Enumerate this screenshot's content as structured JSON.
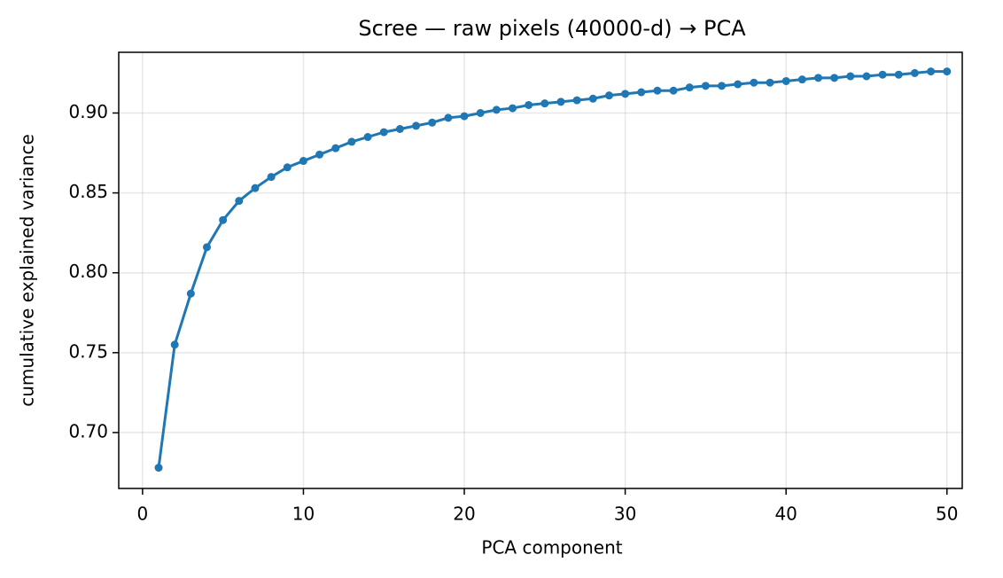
{
  "chart_data": {
    "type": "line",
    "title": "Scree — raw pixels (40000-d) → PCA",
    "x_label": "PCA component",
    "y_label": "cumulative explained variance",
    "x": [
      1,
      2,
      3,
      4,
      5,
      6,
      7,
      8,
      9,
      10,
      11,
      12,
      13,
      14,
      15,
      16,
      17,
      18,
      19,
      20,
      21,
      22,
      23,
      24,
      25,
      26,
      27,
      28,
      29,
      30,
      31,
      32,
      33,
      34,
      35,
      36,
      37,
      38,
      39,
      40,
      41,
      42,
      43,
      44,
      45,
      46,
      47,
      48,
      49,
      50
    ],
    "series": [
      {
        "color": "#1f77b4",
        "values": [
          0.678,
          0.755,
          0.787,
          0.816,
          0.833,
          0.845,
          0.853,
          0.86,
          0.866,
          0.87,
          0.874,
          0.878,
          0.882,
          0.885,
          0.888,
          0.89,
          0.892,
          0.894,
          0.897,
          0.898,
          0.9,
          0.902,
          0.903,
          0.905,
          0.906,
          0.907,
          0.908,
          0.909,
          0.911,
          0.912,
          0.913,
          0.914,
          0.914,
          0.916,
          0.917,
          0.917,
          0.918,
          0.919,
          0.919,
          0.92,
          0.921,
          0.922,
          0.922,
          0.923,
          0.923,
          0.924,
          0.924,
          0.925,
          0.926,
          0.926
        ]
      }
    ],
    "xlim": [
      -1.48,
      50.95
    ],
    "ylim": [
      0.665,
      0.938
    ],
    "xticks": [
      0,
      10,
      20,
      30,
      40,
      50
    ],
    "yticks": [
      {
        "value": 0.7,
        "label": "0.70"
      },
      0.75,
      {
        "value": 0.8,
        "label": "0.80"
      },
      0.85,
      {
        "value": 0.9,
        "label": "0.90"
      }
    ],
    "grid": true
  }
}
